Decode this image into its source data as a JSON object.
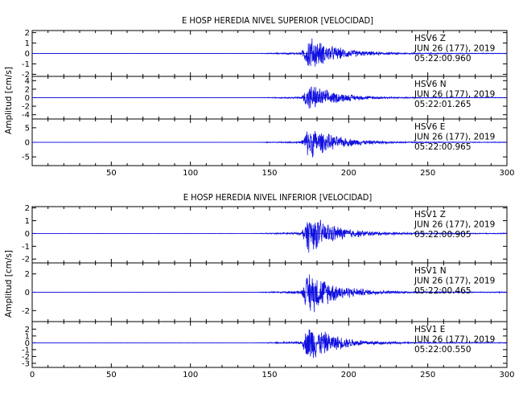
{
  "chart_data": [
    {
      "type": "line",
      "title": "E HOSP HEREDIA NIVEL SUPERIOR [VELOCIDAD]",
      "ylabel": "Amplitud [cm/s]",
      "xlim": [
        0,
        300
      ],
      "x_ticks": [
        50,
        100,
        150,
        200,
        250,
        300
      ],
      "traces": [
        {
          "station": "HSV6",
          "component": "Z",
          "date": "JUN 26 (177), 2019",
          "time": "05:22:00.960",
          "ylim": [
            -2.2,
            2.2
          ],
          "y_ticks": [
            2,
            1,
            0,
            -1,
            -2
          ],
          "peak": 1.9
        },
        {
          "station": "HSV6",
          "component": "N",
          "date": "JUN 26 (177), 2019",
          "time": "05:22:01.265",
          "ylim": [
            -5,
            5
          ],
          "y_ticks": [
            4,
            2,
            0,
            -2,
            -4
          ],
          "peak": 3.8
        },
        {
          "station": "HSV6",
          "component": "E",
          "date": "JUN 26 (177), 2019",
          "time": "05:22:00.965",
          "ylim": [
            -8,
            8
          ],
          "y_ticks": [
            5,
            0,
            -5
          ],
          "peak": 6.5
        }
      ]
    },
    {
      "type": "line",
      "title": "E HOSP HEREDIA NIVEL INFERIOR [VELOCIDAD]",
      "ylabel": "Amplitud [cm/s]",
      "xlim": [
        0,
        300
      ],
      "x_ticks": [
        0,
        50,
        100,
        150,
        200,
        250,
        300
      ],
      "traces": [
        {
          "station": "HSV1",
          "component": "Z",
          "date": "JUN 26 (177), 2019",
          "time": "05:22:00.905",
          "ylim": [
            -2.3,
            2.1
          ],
          "y_ticks": [
            2,
            1,
            0,
            -1,
            -2
          ],
          "peak": 1.8
        },
        {
          "station": "HSV1",
          "component": "N",
          "date": "JUN 26 (177), 2019",
          "time": "05:22:00.465",
          "ylim": [
            -3.2,
            3.2
          ],
          "y_ticks": [
            2,
            0,
            -2
          ],
          "peak": 2.8
        },
        {
          "station": "HSV1",
          "component": "E",
          "date": "JUN 26 (177), 2019",
          "time": "05:22:00.550",
          "ylim": [
            -3.6,
            3.1
          ],
          "y_ticks": [
            2,
            1,
            0,
            -1,
            -2,
            -3
          ],
          "peak": 3.2
        }
      ]
    }
  ],
  "colors": {
    "trace": "#1010e0",
    "axis": "#000000"
  }
}
